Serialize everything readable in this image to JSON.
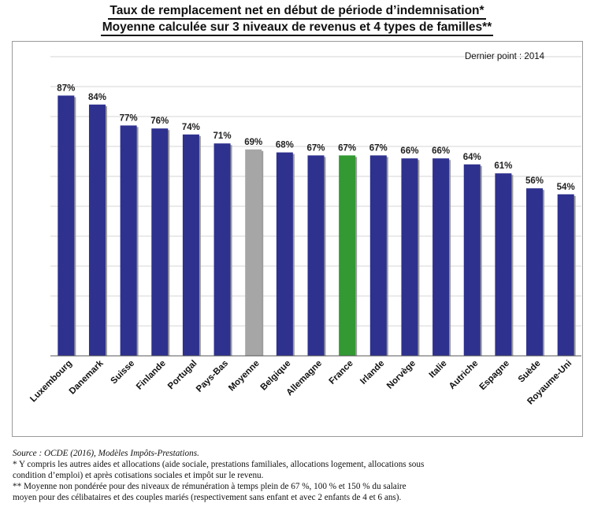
{
  "title": {
    "line1": "Taux de remplacement net en début de période d’indemnisation*",
    "line2": "Moyenne calculée sur 3 niveaux de revenus et 4 types de familles**"
  },
  "latest_point_note": "Dernier point : 2014",
  "chart_data": {
    "type": "bar",
    "categories": [
      "Luxembourg",
      "Danemark",
      "Suisse",
      "Finlande",
      "Portugal",
      "Pays-Bas",
      "Moyenne",
      "Belgique",
      "Allemagne",
      "France",
      "Irlande",
      "Norvège",
      "Italie",
      "Autriche",
      "Espagne",
      "Suède",
      "Royaume-Uni"
    ],
    "values": [
      87,
      84,
      77,
      76,
      74,
      71,
      69,
      68,
      67,
      67,
      67,
      66,
      66,
      64,
      61,
      56,
      54
    ],
    "value_labels": [
      "87%",
      "84%",
      "77%",
      "76%",
      "74%",
      "71%",
      "69%",
      "68%",
      "67%",
      "67%",
      "67%",
      "66%",
      "66%",
      "64%",
      "61%",
      "56%",
      "54%"
    ],
    "ylim": [
      0,
      100
    ],
    "grid": true,
    "colors": {
      "default": "#2e318e",
      "Moyenne": "#a6a6a6",
      "France": "#339933"
    }
  },
  "footnotes": {
    "source": "Source : OCDE (2016), Modèles Impôts-Prestations.",
    "note1_line1": "* Y compris les autres aides et allocations (aide sociale, prestations familiales, allocations logement, allocations sous",
    "note1_line2": "condition d’emploi) et après cotisations sociales et impôt sur le revenu.",
    "note2_line1": "** Moyenne non pondérée pour des niveaux de rémunération à temps plein de 67 %, 100 % et 150 % du salaire",
    "note2_line2": "moyen pour des célibataires et des couples mariés (respectivement sans enfant et avec 2 enfants de 4 et 6 ans)."
  }
}
